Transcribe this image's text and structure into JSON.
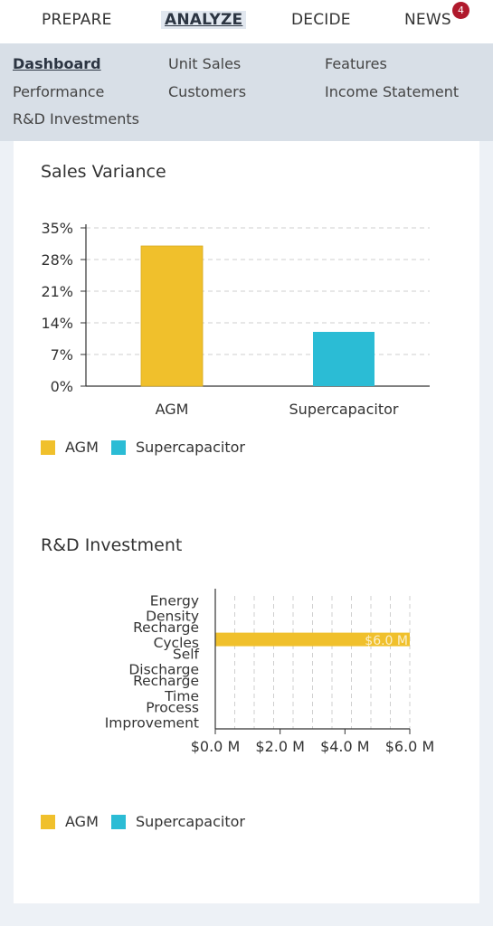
{
  "topnav": {
    "tabs": [
      {
        "label": "PREPARE"
      },
      {
        "label": "ANALYZE"
      },
      {
        "label": "DECIDE"
      },
      {
        "label": "NEWS"
      }
    ],
    "news_badge": "4"
  },
  "subnav": {
    "links": [
      {
        "label": "Dashboard"
      },
      {
        "label": "Unit Sales"
      },
      {
        "label": "Features"
      },
      {
        "label": "Performance"
      },
      {
        "label": "Customers"
      },
      {
        "label": "Income Statement"
      },
      {
        "label": "R&D Investments"
      }
    ]
  },
  "colors": {
    "agm": "#f0c02c",
    "supercapacitor": "#2bbcd5"
  },
  "sales_section": {
    "title": "Sales Variance",
    "legend": [
      {
        "label": "AGM",
        "color": "#f0c02c"
      },
      {
        "label": "Supercapacitor",
        "color": "#2bbcd5"
      }
    ]
  },
  "rd_section": {
    "title": "R&D Investment",
    "legend": [
      {
        "label": "AGM",
        "color": "#f0c02c"
      },
      {
        "label": "Supercapacitor",
        "color": "#2bbcd5"
      }
    ]
  },
  "chart_data": [
    {
      "type": "bar",
      "title": "Sales Variance",
      "categories": [
        "AGM",
        "Supercapacitor"
      ],
      "values": [
        31,
        12
      ],
      "colors": [
        "#f0c02c",
        "#2bbcd5"
      ],
      "yticks": [
        "0%",
        "7%",
        "14%",
        "21%",
        "28%",
        "35%"
      ],
      "ylim": [
        0,
        35
      ],
      "grid": true,
      "legend": "bottom-left"
    },
    {
      "type": "bar",
      "orientation": "horizontal",
      "title": "R&D Investment",
      "categories": [
        [
          "Energy",
          "Density"
        ],
        [
          "Recharge",
          "Cycles"
        ],
        [
          "Self",
          "Discharge"
        ],
        [
          "Recharge",
          "Time"
        ],
        [
          "Process",
          "Improvement"
        ]
      ],
      "series": [
        {
          "name": "AGM",
          "values": [
            null,
            6.0,
            null,
            null,
            null
          ],
          "color": "#f0c02c"
        }
      ],
      "data_labels": [
        "$6.0 M"
      ],
      "xticks": [
        "$0.0 M",
        "$2.0 M",
        "$4.0 M",
        "$6.0 M"
      ],
      "xlim": [
        0,
        6
      ],
      "grid": true,
      "legend": "bottom-left"
    }
  ]
}
